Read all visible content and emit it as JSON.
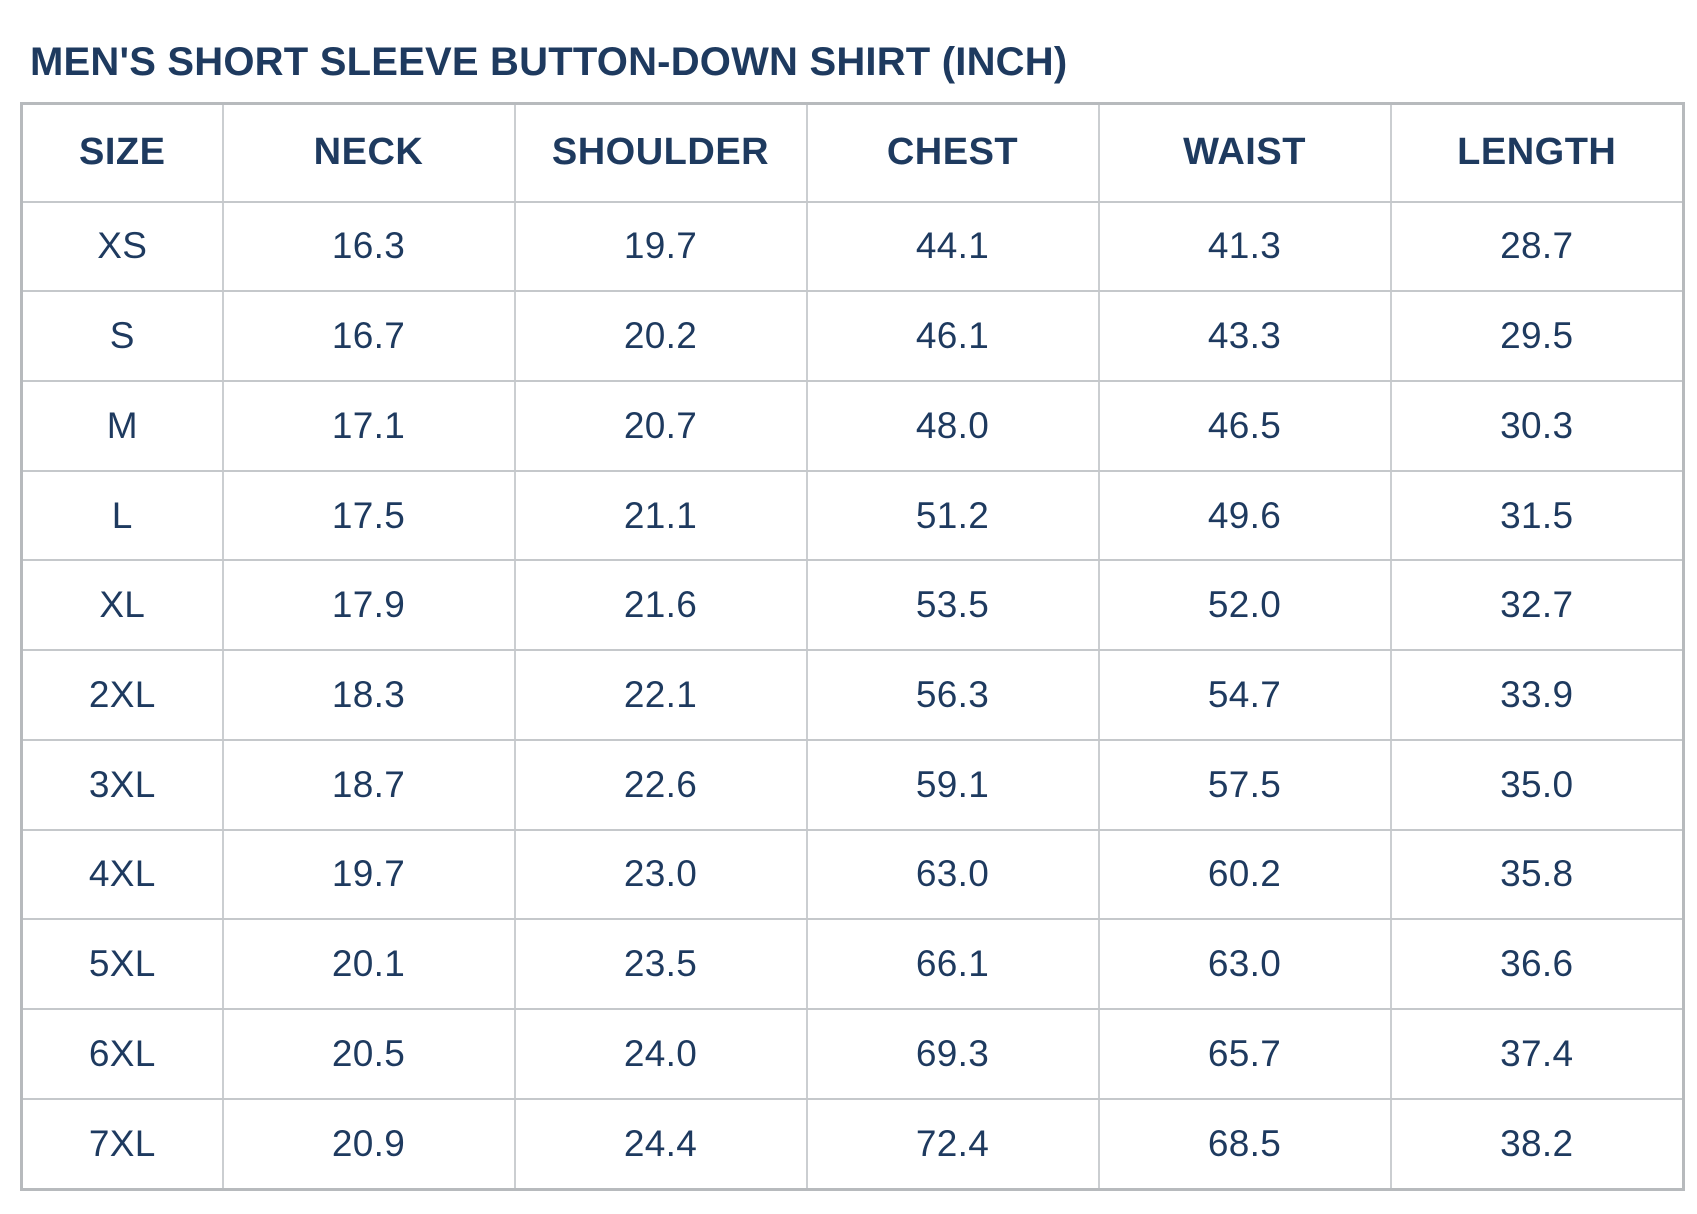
{
  "title": "MEN'S SHORT SLEEVE BUTTON-DOWN SHIRT (INCH)",
  "unit_label": "INCH",
  "colors": {
    "text_navy": "#1e3a5f",
    "grid_line_gray": "#c5c8cb",
    "outer_border_gray": "#b7babd",
    "background": "#ffffff"
  },
  "chart_data": {
    "type": "table",
    "title": "MEN'S SHORT SLEEVE BUTTON-DOWN SHIRT (INCH)",
    "unit": "inch",
    "columns": [
      "SIZE",
      "NECK",
      "SHOULDER",
      "CHEST",
      "WAIST",
      "LENGTH"
    ],
    "rows": [
      {
        "size": "XS",
        "neck": "16.3",
        "shoulder": "19.7",
        "chest": "44.1",
        "waist": "41.3",
        "length": "28.7"
      },
      {
        "size": "S",
        "neck": "16.7",
        "shoulder": "20.2",
        "chest": "46.1",
        "waist": "43.3",
        "length": "29.5"
      },
      {
        "size": "M",
        "neck": "17.1",
        "shoulder": "20.7",
        "chest": "48.0",
        "waist": "46.5",
        "length": "30.3"
      },
      {
        "size": "L",
        "neck": "17.5",
        "shoulder": "21.1",
        "chest": "51.2",
        "waist": "49.6",
        "length": "31.5"
      },
      {
        "size": "XL",
        "neck": "17.9",
        "shoulder": "21.6",
        "chest": "53.5",
        "waist": "52.0",
        "length": "32.7"
      },
      {
        "size": "2XL",
        "neck": "18.3",
        "shoulder": "22.1",
        "chest": "56.3",
        "waist": "54.7",
        "length": "33.9"
      },
      {
        "size": "3XL",
        "neck": "18.7",
        "shoulder": "22.6",
        "chest": "59.1",
        "waist": "57.5",
        "length": "35.0"
      },
      {
        "size": "4XL",
        "neck": "19.7",
        "shoulder": "23.0",
        "chest": "63.0",
        "waist": "60.2",
        "length": "35.8"
      },
      {
        "size": "5XL",
        "neck": "20.1",
        "shoulder": "23.5",
        "chest": "66.1",
        "waist": "63.0",
        "length": "36.6"
      },
      {
        "size": "6XL",
        "neck": "20.5",
        "shoulder": "24.0",
        "chest": "69.3",
        "waist": "65.7",
        "length": "37.4"
      },
      {
        "size": "7XL",
        "neck": "20.9",
        "shoulder": "24.4",
        "chest": "72.4",
        "waist": "68.5",
        "length": "38.2"
      }
    ]
  }
}
